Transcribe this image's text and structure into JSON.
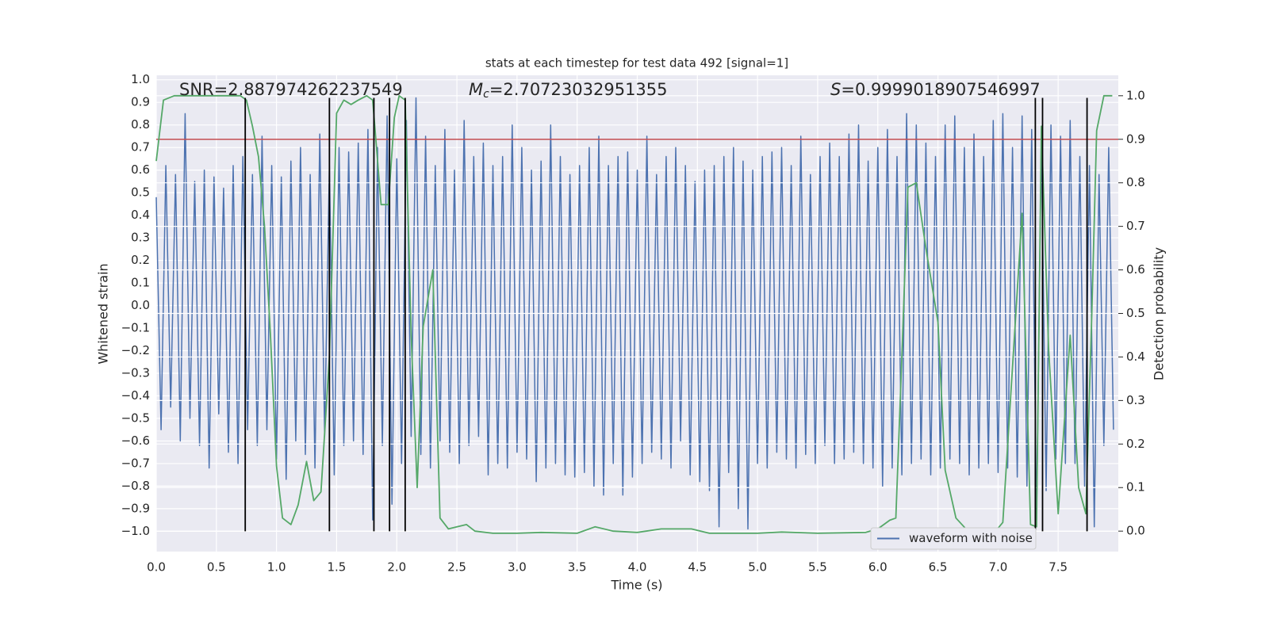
{
  "chart_data": {
    "type": "line",
    "title": "stats at each timestep for test data 492 [signal=1]",
    "xlabel": "Time (s)",
    "ylabel": "Whitened strain",
    "y2label": "Detection probability",
    "xlim": [
      0,
      8.0
    ],
    "ylim": [
      -1.09,
      1.02
    ],
    "y2lim": [
      -0.047,
      1.047
    ],
    "grid": true,
    "background": "#eaeaf2",
    "legend": "lower right",
    "xticks": [
      {
        "value": 0,
        "label": "0.0"
      },
      {
        "value": 0.5,
        "label": "0.5"
      },
      {
        "value": 1,
        "label": "1.0"
      },
      {
        "value": 1.5,
        "label": "1.5"
      },
      {
        "value": 2,
        "label": "2.0"
      },
      {
        "value": 2.5,
        "label": "2.5"
      },
      {
        "value": 3,
        "label": "3.0"
      },
      {
        "value": 3.5,
        "label": "3.5"
      },
      {
        "value": 4,
        "label": "4.0"
      },
      {
        "value": 4.5,
        "label": "4.5"
      },
      {
        "value": 5,
        "label": "5.0"
      },
      {
        "value": 5.5,
        "label": "5.5"
      },
      {
        "value": 6,
        "label": "6.0"
      },
      {
        "value": 6.5,
        "label": "6.5"
      },
      {
        "value": 7,
        "label": "7.0"
      },
      {
        "value": 7.5,
        "label": "7.5"
      }
    ],
    "yticks": [
      {
        "value": -1,
        "label": "−1.0"
      },
      {
        "value": -0.9,
        "label": "−0.9"
      },
      {
        "value": -0.8,
        "label": "−0.8"
      },
      {
        "value": -0.7,
        "label": "−0.7"
      },
      {
        "value": -0.6,
        "label": "−0.6"
      },
      {
        "value": -0.5,
        "label": "−0.5"
      },
      {
        "value": -0.4,
        "label": "−0.4"
      },
      {
        "value": -0.3,
        "label": "−0.3"
      },
      {
        "value": -0.2,
        "label": "−0.2"
      },
      {
        "value": -0.1,
        "label": "−0.1"
      },
      {
        "value": 0,
        "label": "0.0"
      },
      {
        "value": 0.1,
        "label": "0.1"
      },
      {
        "value": 0.2,
        "label": "0.2"
      },
      {
        "value": 0.3,
        "label": "0.3"
      },
      {
        "value": 0.4,
        "label": "0.4"
      },
      {
        "value": 0.5,
        "label": "0.5"
      },
      {
        "value": 0.6,
        "label": "0.6"
      },
      {
        "value": 0.7,
        "label": "0.7"
      },
      {
        "value": 0.8,
        "label": "0.8"
      },
      {
        "value": 0.9,
        "label": "0.9"
      },
      {
        "value": 1,
        "label": "1.0"
      }
    ],
    "y2ticks": [
      {
        "value": 0,
        "label": "0.0"
      },
      {
        "value": 0.1,
        "label": "0.1"
      },
      {
        "value": 0.2,
        "label": "0.2"
      },
      {
        "value": 0.3,
        "label": "0.3"
      },
      {
        "value": 0.4,
        "label": "0.4"
      },
      {
        "value": 0.5,
        "label": "0.5"
      },
      {
        "value": 0.6,
        "label": "0.6"
      },
      {
        "value": 0.7,
        "label": "0.7"
      },
      {
        "value": 0.8,
        "label": "0.8"
      },
      {
        "value": 0.9,
        "label": "0.9"
      },
      {
        "value": 1,
        "label": "1.0"
      }
    ],
    "annotations": [
      {
        "text": "SNR=2.887974262237549"
      },
      {
        "symbol": "M",
        "subscript": "c",
        "text": "=2.70723032951355"
      },
      {
        "symbol": "S",
        "text": "=0.9999018907546997"
      }
    ],
    "series": [
      {
        "name": "waveform with noise",
        "color": "#4c72b0",
        "x": [
          0,
          0.04,
          0.08,
          0.12,
          0.16,
          0.2,
          0.24,
          0.28,
          0.32,
          0.36,
          0.4,
          0.44,
          0.48,
          0.52,
          0.56,
          0.6,
          0.64,
          0.68,
          0.72,
          0.76,
          0.8,
          0.84,
          0.88,
          0.92,
          0.96,
          1,
          1.04,
          1.08,
          1.12,
          1.16,
          1.2,
          1.24,
          1.28,
          1.32,
          1.36,
          1.4,
          1.44,
          1.48,
          1.52,
          1.56,
          1.6,
          1.64,
          1.68,
          1.72,
          1.76,
          1.8,
          1.84,
          1.88,
          1.92,
          1.96,
          2,
          2.04,
          2.08,
          2.12,
          2.16,
          2.2,
          2.24,
          2.28,
          2.32,
          2.36,
          2.4,
          2.44,
          2.48,
          2.52,
          2.56,
          2.6,
          2.64,
          2.68,
          2.72,
          2.76,
          2.8,
          2.84,
          2.88,
          2.92,
          2.96,
          3,
          3.04,
          3.08,
          3.12,
          3.16,
          3.2,
          3.24,
          3.28,
          3.32,
          3.36,
          3.4,
          3.44,
          3.48,
          3.52,
          3.56,
          3.6,
          3.64,
          3.68,
          3.72,
          3.76,
          3.8,
          3.84,
          3.88,
          3.92,
          3.96,
          4,
          4.04,
          4.08,
          4.12,
          4.16,
          4.2,
          4.24,
          4.28,
          4.32,
          4.36,
          4.4,
          4.44,
          4.48,
          4.52,
          4.56,
          4.6,
          4.64,
          4.68,
          4.72,
          4.76,
          4.8,
          4.84,
          4.88,
          4.92,
          4.96,
          5,
          5.04,
          5.08,
          5.12,
          5.16,
          5.2,
          5.24,
          5.28,
          5.32,
          5.36,
          5.4,
          5.44,
          5.48,
          5.52,
          5.56,
          5.6,
          5.64,
          5.68,
          5.72,
          5.76,
          5.8,
          5.84,
          5.88,
          5.92,
          5.96,
          6,
          6.04,
          6.08,
          6.12,
          6.16,
          6.2,
          6.24,
          6.28,
          6.32,
          6.36,
          6.4,
          6.44,
          6.48,
          6.52,
          6.56,
          6.6,
          6.64,
          6.68,
          6.72,
          6.76,
          6.8,
          6.84,
          6.88,
          6.92,
          6.96,
          7,
          7.04,
          7.08,
          7.12,
          7.16,
          7.2,
          7.24,
          7.28,
          7.32,
          7.36,
          7.4,
          7.44,
          7.48,
          7.52,
          7.56,
          7.6,
          7.64,
          7.68,
          7.72,
          7.76,
          7.8,
          7.84,
          7.88,
          7.92,
          7.96
        ],
        "values": [
          0.48,
          -0.55,
          0.62,
          -0.45,
          0.58,
          -0.6,
          0.85,
          -0.5,
          0.55,
          -0.62,
          0.6,
          -0.72,
          0.57,
          -0.48,
          0.52,
          -0.65,
          0.62,
          -0.7,
          0.66,
          -0.55,
          0.58,
          -0.62,
          0.75,
          -0.55,
          0.62,
          -0.68,
          0.57,
          -0.77,
          0.64,
          -0.6,
          0.7,
          -0.66,
          0.58,
          -0.72,
          0.76,
          -0.58,
          0.62,
          -0.75,
          0.7,
          -0.62,
          0.68,
          -0.6,
          0.72,
          -0.66,
          0.78,
          -0.95,
          0.7,
          -0.62,
          0.84,
          -0.88,
          0.65,
          -0.7,
          0.82,
          -0.58,
          0.92,
          -0.66,
          0.75,
          -0.72,
          0.62,
          -0.6,
          0.78,
          -0.65,
          0.6,
          -0.7,
          0.82,
          -0.62,
          0.66,
          -0.58,
          0.72,
          -0.75,
          0.62,
          -0.7,
          0.66,
          -0.72,
          0.8,
          -0.65,
          0.7,
          -0.68,
          0.6,
          -0.78,
          0.64,
          -0.72,
          0.8,
          -0.7,
          0.66,
          -0.75,
          0.58,
          -0.76,
          0.62,
          -0.74,
          0.7,
          -0.8,
          0.75,
          -0.84,
          0.62,
          -0.7,
          0.66,
          -0.84,
          0.68,
          -0.76,
          0.6,
          -0.7,
          0.75,
          -0.65,
          0.58,
          -0.68,
          0.66,
          -0.72,
          0.7,
          -0.6,
          0.62,
          -0.75,
          0.55,
          -0.78,
          0.6,
          -0.82,
          0.62,
          -0.98,
          0.66,
          -0.74,
          0.7,
          -0.9,
          0.64,
          -0.99,
          0.6,
          -0.7,
          0.66,
          -0.72,
          0.68,
          -0.65,
          0.7,
          -0.68,
          0.62,
          -0.72,
          0.75,
          -0.66,
          0.58,
          -0.7,
          0.66,
          -0.62,
          0.72,
          -0.7,
          0.66,
          -0.68,
          0.76,
          -0.65,
          0.8,
          -0.7,
          0.64,
          -0.72,
          0.7,
          -0.8,
          0.78,
          -0.72,
          0.66,
          -0.75,
          0.85,
          -0.7,
          0.8,
          -0.68,
          0.72,
          -0.75,
          0.66,
          -0.72,
          0.8,
          -0.68,
          0.84,
          -0.7,
          0.7,
          -0.75,
          0.76,
          -0.72,
          0.66,
          -0.7,
          0.82,
          -0.74,
          0.85,
          -0.72,
          0.7,
          -0.76,
          0.84,
          -0.8,
          0.78,
          -0.95,
          0.74,
          -0.82,
          0.8,
          -0.68,
          0.75,
          -0.7,
          0.82,
          -0.7,
          0.66,
          -0.8,
          0.62,
          -0.98,
          0.58,
          -0.62,
          0.7,
          -0.55
        ]
      }
    ],
    "probability": {
      "color": "#55a868",
      "axis": "y2",
      "x": [
        0,
        0.06,
        0.15,
        0.3,
        0.5,
        0.7,
        0.75,
        0.8,
        0.85,
        0.9,
        0.95,
        1,
        1.05,
        1.12,
        1.18,
        1.25,
        1.31,
        1.37,
        1.44,
        1.5,
        1.56,
        1.62,
        1.68,
        1.75,
        1.8,
        1.87,
        1.93,
        1.98,
        2.02,
        2.07,
        2.12,
        2.17,
        2.22,
        2.3,
        2.36,
        2.43,
        2.5,
        2.58,
        2.65,
        2.8,
        3,
        3.2,
        3.5,
        3.65,
        3.8,
        4,
        4.2,
        4.45,
        4.6,
        5,
        5.2,
        5.5,
        5.9,
        6,
        6.1,
        6.15,
        6.2,
        6.25,
        6.32,
        6.4,
        6.5,
        6.56,
        6.65,
        6.75,
        6.9,
        6.98,
        7.04,
        7.2,
        7.27,
        7.32,
        7.36,
        7.42,
        7.5,
        7.6,
        7.67,
        7.73,
        7.78,
        7.82,
        7.88,
        7.95
      ],
      "values": [
        0.85,
        0.99,
        1,
        1,
        1,
        1,
        0.99,
        0.93,
        0.86,
        0.7,
        0.45,
        0.15,
        0.03,
        0.015,
        0.06,
        0.16,
        0.07,
        0.09,
        0.4,
        0.96,
        0.99,
        0.98,
        0.99,
        1,
        0.99,
        0.75,
        0.75,
        0.95,
        1,
        0.99,
        0.45,
        0.1,
        0.47,
        0.6,
        0.03,
        0.005,
        0.01,
        0.015,
        0,
        -0.005,
        -0.005,
        -0.003,
        -0.005,
        0.01,
        0,
        -0.003,
        0.005,
        0.005,
        -0.005,
        -0.005,
        -0.002,
        -0.005,
        -0.003,
        0.005,
        0.025,
        0.03,
        0.4,
        0.79,
        0.8,
        0.65,
        0.48,
        0.14,
        0.03,
        0,
        -0.01,
        0,
        0.02,
        0.73,
        0.015,
        0.01,
        0.93,
        0.42,
        0.04,
        0.45,
        0.1,
        0.04,
        0.5,
        0.92,
        1,
        1
      ]
    },
    "threshold": {
      "value": 0.9,
      "axis": "y2",
      "color": "#c44e52"
    },
    "vlines": {
      "x": [
        0.74,
        1.44,
        1.81,
        1.94,
        2.07,
        7.31,
        7.37,
        7.74
      ],
      "ymin": -1.0,
      "ymax": 0.92,
      "color": "#000000"
    }
  }
}
